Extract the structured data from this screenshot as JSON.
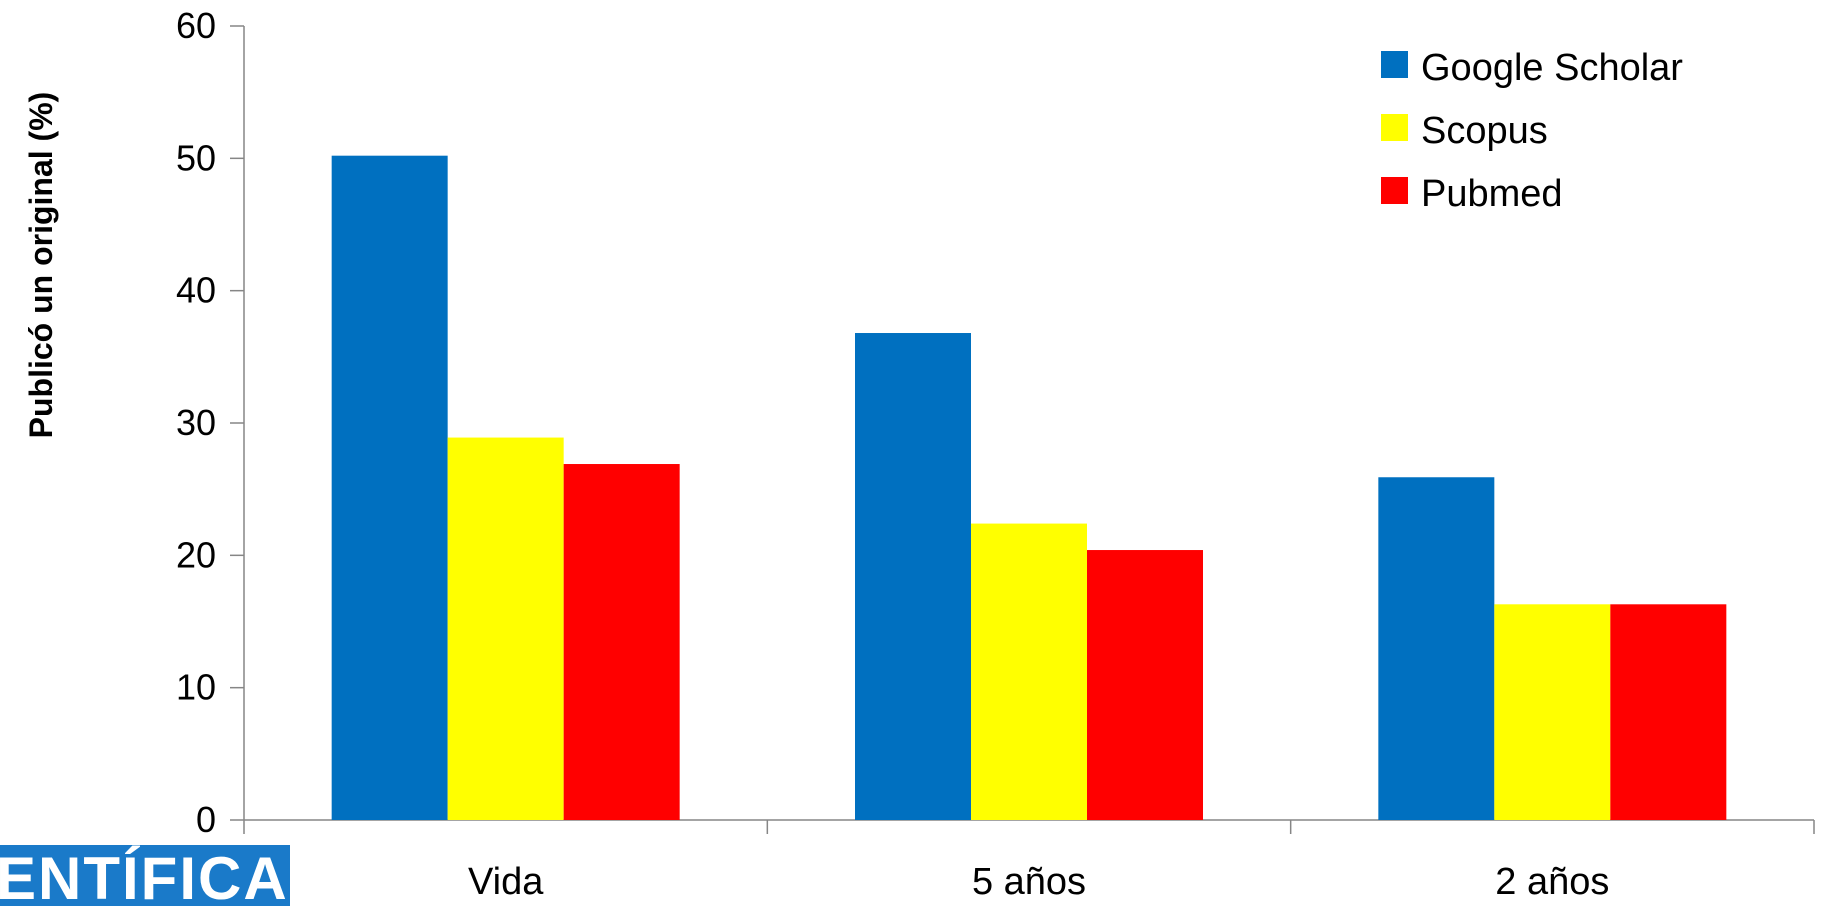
{
  "chart_data": {
    "type": "bar",
    "categories": [
      "Vida",
      "5 años",
      "2 años"
    ],
    "series": [
      {
        "name": "Google Scholar",
        "color": "#0070C0",
        "values": [
          50.2,
          36.8,
          25.9
        ]
      },
      {
        "name": "Scopus",
        "color": "#FFFF00",
        "values": [
          28.9,
          22.4,
          16.3
        ]
      },
      {
        "name": "Pubmed",
        "color": "#FF0000",
        "values": [
          26.9,
          20.4,
          16.3
        ]
      }
    ],
    "title": "",
    "xlabel": "",
    "ylabel": "Publicó un original (%)",
    "ylim": [
      0,
      60
    ],
    "yticks": [
      0,
      10,
      20,
      30,
      40,
      50,
      60
    ],
    "ytick_labels": [
      "0",
      "10",
      "20",
      "30",
      "40",
      "50",
      "60"
    ],
    "grid": false,
    "legend_position": "top-right"
  },
  "logo": {
    "text": "ENTÍFICA"
  }
}
